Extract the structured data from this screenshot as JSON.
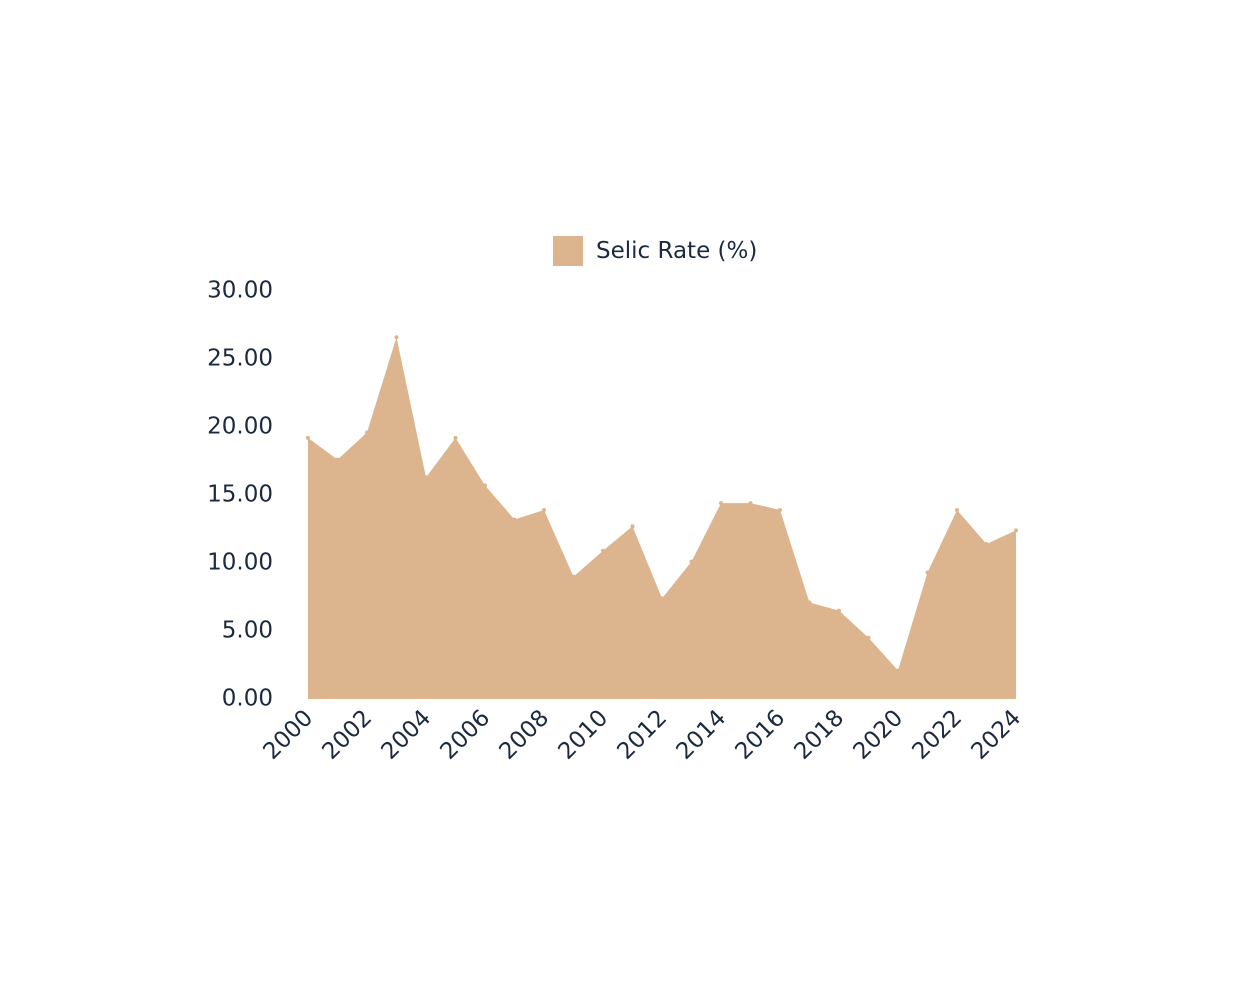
{
  "chart_data": {
    "type": "area",
    "x": [
      2000,
      2001,
      2002,
      2003,
      2004,
      2005,
      2006,
      2007,
      2008,
      2009,
      2010,
      2011,
      2012,
      2013,
      2014,
      2015,
      2016,
      2017,
      2018,
      2019,
      2020,
      2021,
      2022,
      2023,
      2024
    ],
    "series": [
      {
        "name": "Selic Rate (%)",
        "color": "#dcb58f",
        "values": [
          19.2,
          17.6,
          19.6,
          26.6,
          16.3,
          19.2,
          15.7,
          13.2,
          13.9,
          9.0,
          10.9,
          12.7,
          7.4,
          10.1,
          14.4,
          14.4,
          13.9,
          7.1,
          6.5,
          4.5,
          2.1,
          9.3,
          13.9,
          11.4,
          12.4
        ]
      }
    ],
    "ylim": [
      0,
      30
    ],
    "y_ticks": [
      "0.00",
      "5.00",
      "10.00",
      "15.00",
      "20.00",
      "25.00",
      "30.00"
    ],
    "x_ticks": [
      "2000",
      "2002",
      "2004",
      "2006",
      "2008",
      "2010",
      "2012",
      "2014",
      "2016",
      "2018",
      "2020",
      "2022",
      "2024"
    ],
    "grid": false,
    "legend_position": "top"
  }
}
